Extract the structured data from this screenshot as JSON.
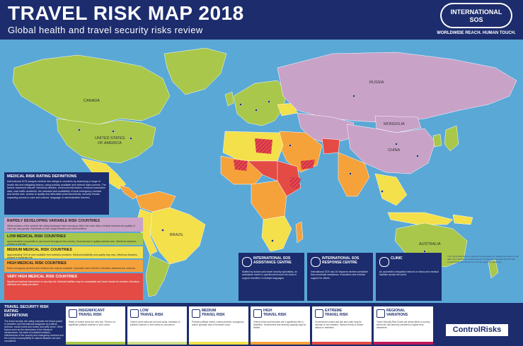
{
  "header": {
    "title": "TRAVEL RISK MAP 2018",
    "subtitle": "Global health and travel security risks review",
    "logo_line1": "INTERNATIONAL",
    "logo_line2": "SOS",
    "tagline": "WORLDWIDE REACH. HUMAN TOUCH."
  },
  "map_labels": {
    "canada": "CANADA",
    "usa_line1": "UNITED STATES",
    "usa_line2": "OF AMERICA",
    "russia": "RUSSIA",
    "mongolia": "MONGOLIA",
    "china": "CHINA",
    "brazil": "BRAZIL",
    "australia": "AUSTRALIA"
  },
  "colors": {
    "header": "#1c2c6d",
    "ocean": "#5aa8d6",
    "insignificant_low": "#a9c74a",
    "medium": "#f3e04a",
    "high": "#f5a23a",
    "very_high": "#e34b44",
    "rapidly_developing": "#c9a2c8",
    "extreme_hatch": "#c2185b"
  },
  "medical_definitions": {
    "heading": "MEDICAL RISK RATING DEFINITIONS",
    "body": "International SOS assigns medical risk ratings to countries by assessing a range of health risk and mitigating factors, using publicly available and internal data sources. The factors assessed include: infectious disease, environmental factors, medical evacuation data, road traffic accidents, the standard and availability of local emergency medical and dental care, access to quality and affordable pharmaceuticals, security threats impacting access to care and cultural, language or administrative barriers."
  },
  "medical_legend": [
    {
      "id": "rapid",
      "label": "RAPIDLY DEVELOPING VARIABLE RISK COUNTRIES",
      "text": "While sections of the medical risk rating landscape have sprung up within the main cities, medical services and quality of care can vary greatly. Standards of care range between poor and excellent."
    },
    {
      "id": "low",
      "label": "LOW MEDICAL RISK COUNTRIES",
      "text": "Approximately comparable to care found throughout the country. Good access to quality medical care. Infectious diseases present a low risk."
    },
    {
      "id": "medium",
      "label": "MEDIUM MEDICAL RISK COUNTRIES",
      "text": "Approximately 70% of care available from selected providers. Medical availability and quality may vary. Infectious diseases present a moderate risk."
    },
    {
      "id": "high",
      "label": "HIGH MEDICAL RISK COUNTRIES",
      "text": "Basic emergency services and medical care may be available. Specialist care is limited. Infectious diseases are common."
    },
    {
      "id": "very_high",
      "label": "VERY HIGH MEDICAL RISK COUNTRIES",
      "text": "Significant medical intervention or security risk. Medical facilities may be unavailable and travel should be avoided. Infectious diseases are highly prevalent."
    }
  ],
  "services": [
    {
      "id": "assistance",
      "title_line1": "INTERNATIONAL SOS",
      "title_line2": "ASSISTANCE CENTRE",
      "text": "Staffed by doctors and travel security specialists, an assistance centre is operational around the clock to support travellers in multiple languages."
    },
    {
      "id": "response",
      "title_line1": "INTERNATIONAL SOS",
      "title_line2": "RESPONSE CENTRE",
      "text": "International SOS has 26 response centres worldwide that coordinate assistance, evacuation and medical support for clients."
    },
    {
      "id": "clinic",
      "title_line1": "CLINIC",
      "title_line2": "",
      "text": "An accredited, integrated network of clinics and medical facilities across the world."
    }
  ],
  "travel_definitions": {
    "heading_line1": "TRAVEL SECURITY RISK RATING",
    "heading_line2": "DEFINITIONS",
    "body": "The travel security risk rating evaluates the threat posed to travellers and international assignees by political violence, social unrest and violent and petty crime. Other factors such as the robustness of the transport infrastructure, the state of industrial relations, effectiveness of the security and emergency services and the country's susceptibility to natural disasters are also considered."
  },
  "travel_legend": [
    {
      "id": "insignificant",
      "line1": "INSIGNIFICANT",
      "line2": "TRAVEL RISK",
      "text": "Rates of violent crime are very low. There is no significant political violence or civil unrest.",
      "color": "#a9c74a"
    },
    {
      "id": "low",
      "line1": "LOW",
      "line2": "TRAVEL RISK",
      "text": "Violent crime rates are low and racial, sectarian or political violence or civil unrest is uncommon.",
      "color": "#cfe08a"
    },
    {
      "id": "medium",
      "line1": "MEDIUM",
      "line2": "TRAVEL RISK",
      "text": "Periodic political unrest, violent protests, insurgency and/or sporadic acts of terrorism occur.",
      "color": "#f3e04a"
    },
    {
      "id": "high",
      "line1": "HIGH",
      "line2": "TRAVEL RISK",
      "text": "Violent crime and terrorism are a significant risk to travellers. Government and security capacity may be limited.",
      "color": "#f5a23a"
    },
    {
      "id": "extreme",
      "line1": "EXTREME",
      "line2": "TRAVEL RISK",
      "text": "Government control and law and order may be minimal or non-existent. Serious threat of violent attack on travellers.",
      "color": "#e34b44"
    },
    {
      "id": "regional",
      "line1": "REGIONAL",
      "line2": "VARIATIONS",
      "text": "Travel Security Risk Zones are areas within a country where the risk faced by travellers is higher than elsewhere.",
      "color": "#c2185b"
    }
  ],
  "partner_logo": "ControlRisks",
  "fine_print": "The Travel Risk Map is a graphic representation of medical and security risk data. The information presented was compiled by International SOS and Control Risks and should be used as a general guide only."
}
